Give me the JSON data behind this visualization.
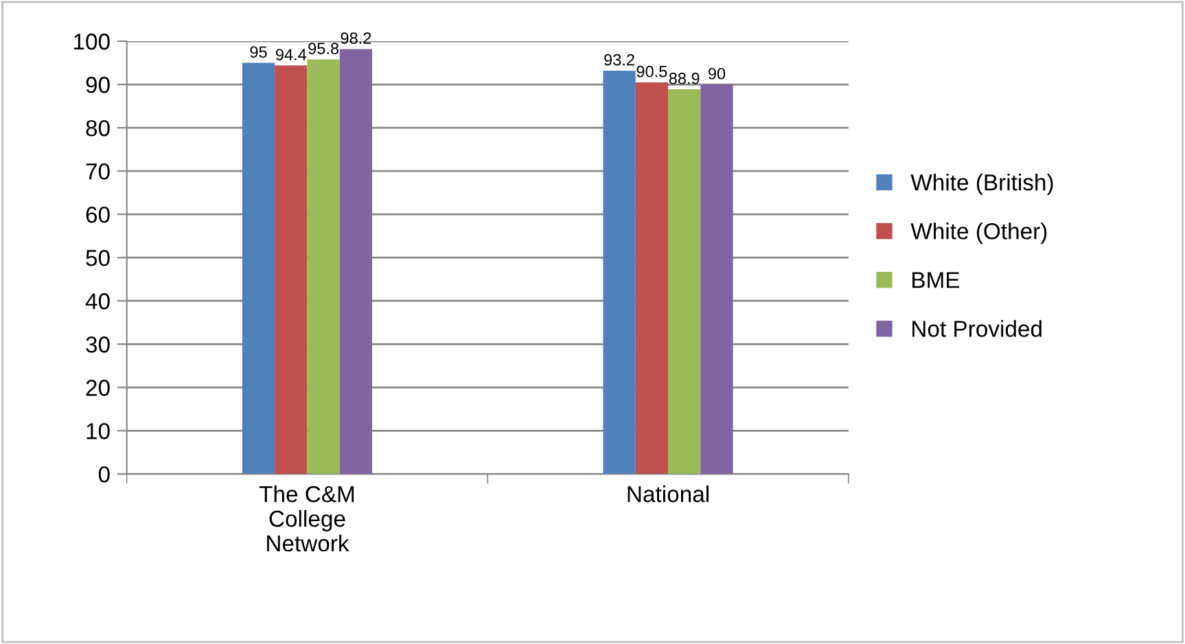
{
  "chart_data": {
    "type": "bar",
    "categories": [
      "The C&M\nCollege\nNetwork",
      "National"
    ],
    "series": [
      {
        "name": "White (British)",
        "color": "#4f81bd",
        "values": [
          95,
          93.2
        ]
      },
      {
        "name": "White (Other)",
        "color": "#c0504d",
        "values": [
          94.4,
          90.5
        ]
      },
      {
        "name": "BME",
        "color": "#9bbb59",
        "values": [
          95.8,
          88.9
        ]
      },
      {
        "name": "Not Provided",
        "color": "#8064a2",
        "values": [
          98.2,
          90
        ]
      }
    ],
    "ylim": [
      0,
      100
    ],
    "yticks": [
      0,
      10,
      20,
      30,
      40,
      50,
      60,
      70,
      80,
      90,
      100
    ],
    "grid": "y",
    "legend": "right",
    "data_labels": true
  }
}
